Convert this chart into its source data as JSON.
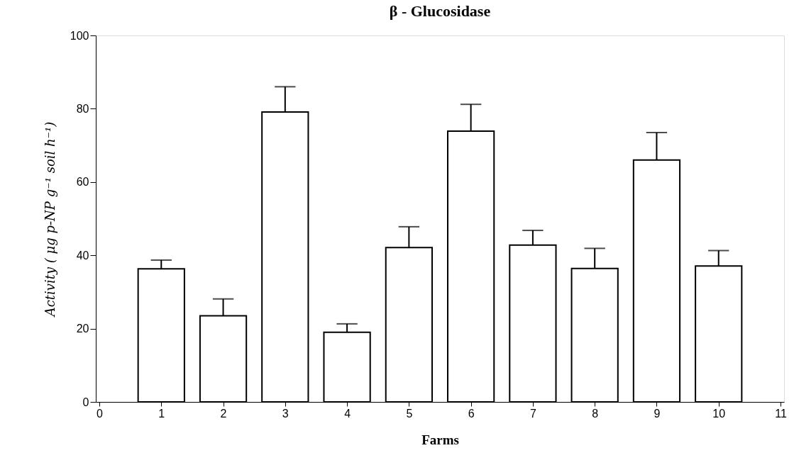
{
  "chart_data": {
    "type": "bar",
    "title": "β - Glucosidase",
    "xlabel": "Farms",
    "ylabel": "Activity ( μg p-NP g⁻¹ soil h⁻¹)",
    "x": [
      1,
      2,
      3,
      4,
      5,
      6,
      7,
      8,
      9,
      10
    ],
    "values": [
      36.3,
      23.5,
      79.1,
      19.0,
      42.1,
      73.9,
      42.8,
      36.4,
      66.0,
      37.1
    ],
    "errors": [
      [
        36.3,
        38.7
      ],
      [
        23.5,
        28.1
      ],
      [
        79.1,
        86.0
      ],
      [
        19.0,
        21.3
      ],
      [
        42.1,
        47.8
      ],
      [
        73.9,
        81.2
      ],
      [
        42.8,
        46.8
      ],
      [
        36.4,
        41.9
      ],
      [
        66.0,
        73.5
      ],
      [
        37.1,
        41.3
      ]
    ],
    "color": "#ffffff",
    "xlim": [
      0,
      11
    ],
    "xticks": [
      0,
      1,
      2,
      3,
      4,
      5,
      6,
      7,
      8,
      9,
      10,
      11
    ],
    "ylim": [
      0,
      100
    ],
    "yticks": [
      0,
      20,
      40,
      60,
      80,
      100
    ]
  }
}
